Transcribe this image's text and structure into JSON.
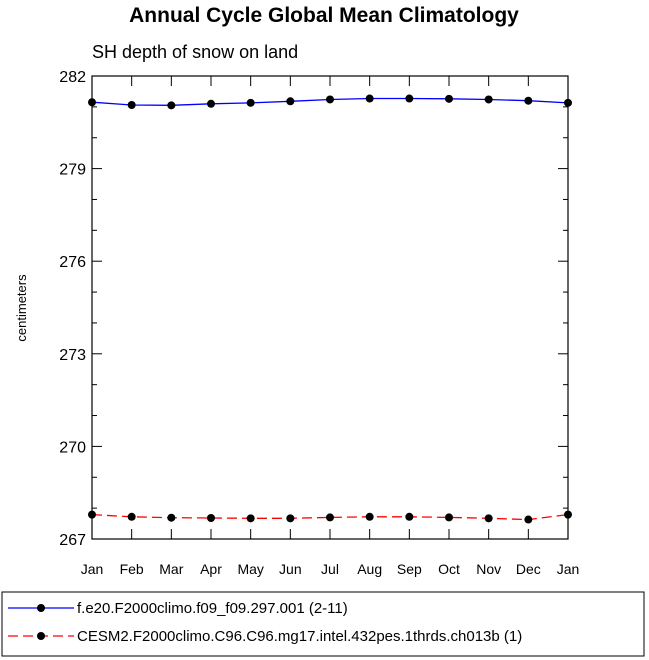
{
  "chart_data": {
    "type": "line",
    "title": "Annual Cycle Global Mean Climatology",
    "subtitle": "SH depth of snow on land",
    "ylabel": "centimeters",
    "xlabel": "",
    "categories": [
      "Jan",
      "Feb",
      "Mar",
      "Apr",
      "May",
      "Jun",
      "Jul",
      "Aug",
      "Sep",
      "Oct",
      "Nov",
      "Dec",
      "Jan"
    ],
    "ylim": [
      267,
      282
    ],
    "yticks": [
      267,
      270,
      273,
      276,
      279,
      282
    ],
    "grid": false,
    "legend_position": "bottom",
    "series": [
      {
        "name": "f.e20.F2000climo.f09_f09.297.001 (2-11)",
        "color": "#0000ff",
        "dash": "solid",
        "values": [
          281.15,
          281.06,
          281.05,
          281.1,
          281.13,
          281.18,
          281.24,
          281.27,
          281.27,
          281.26,
          281.24,
          281.2,
          281.13
        ]
      },
      {
        "name": "CESM2.F2000climo.C96.C96.mg17.intel.432pes.1thrds.ch013b (1)",
        "color": "#ff0000",
        "dash": "dashed",
        "values": [
          267.79,
          267.72,
          267.69,
          267.68,
          267.67,
          267.67,
          267.7,
          267.72,
          267.72,
          267.7,
          267.67,
          267.63,
          267.79
        ]
      }
    ]
  }
}
